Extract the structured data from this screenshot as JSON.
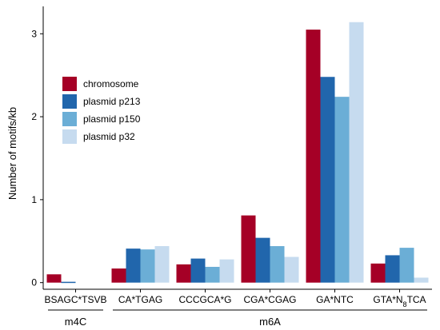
{
  "chart_data": {
    "type": "bar",
    "title": "",
    "xlabel": "",
    "ylabel": "Number of motifs/kb",
    "ylim": [
      -0.08,
      3.33
    ],
    "yticks": [
      0,
      1,
      2,
      3
    ],
    "grid": false,
    "legend": "top-left",
    "categories": [
      "BSAGC*TSVB",
      "CA*TGAG",
      "CCCGCA*G",
      "CGA*CGAG",
      "GA*NTC",
      "GTA*N8TCA"
    ],
    "category_labels": [
      {
        "parts": [
          {
            "t": "BSAGC*TSVB"
          }
        ]
      },
      {
        "parts": [
          {
            "t": "CA*TGAG"
          }
        ]
      },
      {
        "parts": [
          {
            "t": "CCCGCA*G"
          }
        ]
      },
      {
        "parts": [
          {
            "t": "CGA*CGAG"
          }
        ]
      },
      {
        "parts": [
          {
            "t": "GA*NTC"
          }
        ]
      },
      {
        "parts": [
          {
            "t": "GTA*N"
          },
          {
            "t": "8",
            "sub": true
          },
          {
            "t": "TCA"
          }
        ]
      }
    ],
    "series": [
      {
        "name": "chromosome",
        "color": "#a50026",
        "values": [
          0.1,
          0.17,
          0.22,
          0.81,
          3.05,
          0.23
        ]
      },
      {
        "name": "plasmid p213",
        "color": "#2166ac",
        "values": [
          0.01,
          0.41,
          0.29,
          0.54,
          2.48,
          0.33
        ]
      },
      {
        "name": "plasmid p150",
        "color": "#6baed6",
        "values": [
          0,
          0.4,
          0.19,
          0.44,
          2.24,
          0.42
        ]
      },
      {
        "name": "plasmid p32",
        "color": "#c6dbef",
        "values": [
          0,
          0.44,
          0.28,
          0.31,
          3.14,
          0.06
        ]
      }
    ],
    "groups": [
      {
        "label": "m4C",
        "from": 0,
        "to": 0
      },
      {
        "label": "m6A",
        "from": 1,
        "to": 5
      }
    ]
  }
}
